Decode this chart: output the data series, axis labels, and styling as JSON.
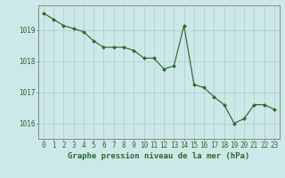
{
  "x": [
    0,
    1,
    2,
    3,
    4,
    5,
    6,
    7,
    8,
    9,
    10,
    11,
    12,
    13,
    14,
    15,
    16,
    17,
    18,
    19,
    20,
    21,
    22,
    23
  ],
  "y": [
    1019.55,
    1019.35,
    1019.15,
    1019.05,
    1018.95,
    1018.65,
    1018.45,
    1018.45,
    1018.45,
    1018.35,
    1018.1,
    1018.1,
    1017.75,
    1017.85,
    1019.15,
    1017.25,
    1017.15,
    1016.85,
    1016.6,
    1016.0,
    1016.15,
    1016.6,
    1016.6,
    1016.45
  ],
  "line_color": "#2d6a2d",
  "marker": "D",
  "marker_size": 2.0,
  "bg_color": "#cce8e8",
  "grid_color": "#aacccc",
  "xlabel": "Graphe pression niveau de la mer (hPa)",
  "xlabel_fontsize": 6.5,
  "xtick_labels": [
    "0",
    "1",
    "2",
    "3",
    "4",
    "5",
    "6",
    "7",
    "8",
    "9",
    "10",
    "11",
    "12",
    "13",
    "14",
    "15",
    "16",
    "17",
    "18",
    "19",
    "20",
    "21",
    "22",
    "23"
  ],
  "ytick_labels": [
    "1016",
    "1017",
    "1018",
    "1019"
  ],
  "ytick_values": [
    1016,
    1017,
    1018,
    1019
  ],
  "ylim": [
    1015.5,
    1019.8
  ],
  "xlim": [
    -0.5,
    23.5
  ],
  "tick_fontsize": 5.5,
  "spine_color": "#888888"
}
